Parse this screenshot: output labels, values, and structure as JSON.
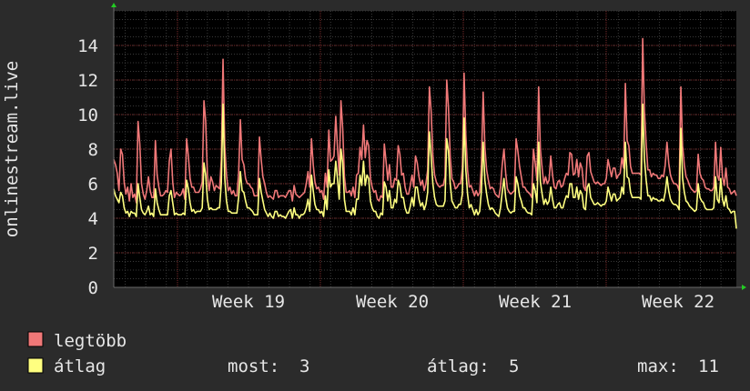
{
  "chart_data": {
    "type": "line",
    "ylabel": "onlinestream.live",
    "ylim": [
      0,
      16
    ],
    "yticks": [
      0,
      2,
      4,
      6,
      8,
      10,
      12,
      14
    ],
    "x_ticks": [
      "Week 19",
      "Week 20",
      "Week 21",
      "Week 22"
    ],
    "grid": true,
    "series": [
      {
        "name": "legtöbb",
        "color": "#f07878",
        "values": [
          7.4,
          7.1,
          6.6,
          5.6,
          8.0,
          7.7,
          6.1,
          5.4,
          5.8,
          5.0,
          6.0,
          5.2,
          5.4,
          4.9,
          9.6,
          8.3,
          6.0,
          5.4,
          5.1,
          5.6,
          6.4,
          5.6,
          5.2,
          5.2,
          8.5,
          6.5,
          5.8,
          5.3,
          5.3,
          5.4,
          5.6,
          5.5,
          7.3,
          8.0,
          6.1,
          5.2,
          5.5,
          5.4,
          5.3,
          5.4,
          5.7,
          5.1,
          8.6,
          7.6,
          6.3,
          5.8,
          5.8,
          5.5,
          5.5,
          5.5,
          5.7,
          6.1,
          10.8,
          9.6,
          6.5,
          5.6,
          6.4,
          6.1,
          5.6,
          5.9,
          5.8,
          5.7,
          7.4,
          13.2,
          8.2,
          6.5,
          5.6,
          5.8,
          5.4,
          5.6,
          5.3,
          5.3,
          6.6,
          9.7,
          7.4,
          7.1,
          6.3,
          6.0,
          6.0,
          5.8,
          5.7,
          5.3,
          5.3,
          5.3,
          8.7,
          7.4,
          6.4,
          6.0,
          5.5,
          5.2,
          5.3,
          5.2,
          5.1,
          5.6,
          5.6,
          5.2,
          5.3,
          5.3,
          5.3,
          5.2,
          5.4,
          5.6,
          5.6,
          5.0,
          5.9,
          5.4,
          5.3,
          5.2,
          5.3,
          5.4,
          5.5,
          6.0,
          6.7,
          5.8,
          8.6,
          7.1,
          6.1,
          5.7,
          5.8,
          5.5,
          5.6,
          5.1,
          6.6,
          5.8,
          9.1,
          7.3,
          7.4,
          7.6,
          9.9,
          8.1,
          6.5,
          10.8,
          9.2,
          6.4,
          5.5,
          5.5,
          5.6,
          5.3,
          5.8,
          5.2,
          6.5,
          6.6,
          8.1,
          7.4,
          9.4,
          7.5,
          8.5,
          8.2,
          6.3,
          5.8,
          5.5,
          5.6,
          5.1,
          5.0,
          5.3,
          5.2,
          8.3,
          7.3,
          6.2,
          7.1,
          5.8,
          5.8,
          6.3,
          6.2,
          8.2,
          7.7,
          6.5,
          6.6,
          5.8,
          5.4,
          5.4,
          5.9,
          6.5,
          5.8,
          7.6,
          7.2,
          6.4,
          5.9,
          6.2,
          5.6,
          6.0,
          6.8,
          11.6,
          10.2,
          7.6,
          6.5,
          6.1,
          5.9,
          5.8,
          5.9,
          5.9,
          6.4,
          12.0,
          10.4,
          7.6,
          6.3,
          6.1,
          5.7,
          5.8,
          6.0,
          6.0,
          6.9,
          12.4,
          8.8,
          6.8,
          5.8,
          5.9,
          5.6,
          5.3,
          5.6,
          5.3,
          5.5,
          7.1,
          11.3,
          8.1,
          6.8,
          6.2,
          5.7,
          5.8,
          5.7,
          5.4,
          5.3,
          5.2,
          5.8,
          7.1,
          8.0,
          6.6,
          5.7,
          5.5,
          5.4,
          5.5,
          5.6,
          8.6,
          7.9,
          7.0,
          6.4,
          5.8,
          5.8,
          5.6,
          5.5,
          5.4,
          5.2,
          8.0,
          7.2,
          6.2,
          11.6,
          8.0,
          6.9,
          6.0,
          6.4,
          6.0,
          6.2,
          7.6,
          6.5,
          5.8,
          5.7,
          6.1,
          6.2,
          5.8,
          5.9,
          6.3,
          6.6,
          6.5,
          7.8,
          7.7,
          6.5,
          6.6,
          7.4,
          6.4,
          7.2,
          6.9,
          5.8,
          5.6,
          7.6,
          7.8,
          6.7,
          6.4,
          6.1,
          6.0,
          6.1,
          6.0,
          5.9,
          6.0,
          6.0,
          6.3,
          7.4,
          6.9,
          6.4,
          6.9,
          6.9,
          6.3,
          6.5,
          6.6,
          7.5,
          6.9,
          11.8,
          8.5,
          8.2,
          7.0,
          6.6,
          6.6,
          6.6,
          6.6,
          6.6,
          6.5,
          14.4,
          10.2,
          8.3,
          6.8,
          6.8,
          6.4,
          6.6,
          6.5,
          6.5,
          6.3,
          6.3,
          6.5,
          6.4,
          7.1,
          8.4,
          7.2,
          6.5,
          6.2,
          6.0,
          6.0,
          5.9,
          5.6,
          11.6,
          8.2,
          7.1,
          6.4,
          6.2,
          5.9,
          5.7,
          5.6,
          5.5,
          5.6,
          7.7,
          6.6,
          6.3,
          6.2,
          5.8,
          5.7,
          5.7,
          5.6,
          5.6,
          5.8,
          8.4,
          6.5,
          6.2,
          8.1,
          6.4,
          5.9,
          6.9,
          5.8,
          5.7,
          5.4,
          5.5,
          5.6,
          5.3
        ]
      },
      {
        "name": "átlag",
        "color": "#ffff80",
        "values": [
          5.7,
          5.3,
          5.1,
          4.9,
          5.5,
          5.3,
          4.6,
          4.3,
          4.4,
          4.1,
          4.4,
          4.3,
          4.3,
          4.1,
          6.0,
          5.2,
          4.5,
          4.3,
          4.2,
          4.4,
          4.7,
          4.2,
          4.3,
          4.1,
          5.7,
          4.9,
          4.5,
          4.2,
          4.2,
          4.2,
          4.2,
          4.2,
          5.3,
          5.6,
          4.9,
          4.2,
          4.3,
          4.2,
          4.2,
          4.2,
          4.3,
          4.2,
          6.2,
          5.7,
          4.9,
          4.4,
          4.5,
          4.3,
          4.4,
          4.4,
          4.4,
          4.6,
          7.2,
          6.5,
          5.1,
          4.5,
          4.6,
          4.5,
          4.5,
          4.5,
          4.6,
          4.6,
          6.0,
          10.6,
          6.3,
          5.0,
          4.4,
          4.4,
          4.3,
          4.3,
          4.3,
          4.3,
          5.2,
          6.7,
          5.6,
          5.5,
          5.0,
          4.6,
          4.6,
          4.5,
          4.4,
          4.2,
          4.2,
          4.2,
          6.3,
          5.5,
          5.0,
          4.5,
          4.3,
          4.1,
          4.3,
          4.1,
          4.0,
          4.4,
          4.4,
          4.1,
          4.2,
          4.1,
          4.1,
          4.0,
          4.2,
          4.4,
          4.5,
          4.0,
          4.6,
          4.2,
          4.2,
          4.0,
          4.2,
          4.2,
          4.3,
          4.6,
          5.1,
          4.4,
          6.5,
          5.6,
          4.8,
          4.5,
          4.5,
          4.3,
          4.4,
          4.1,
          5.3,
          4.5,
          6.8,
          5.8,
          6.0,
          6.0,
          7.3,
          6.3,
          5.1,
          8.0,
          7.2,
          5.1,
          4.4,
          4.4,
          4.4,
          4.2,
          4.6,
          4.2,
          5.1,
          5.1,
          6.5,
          5.9,
          7.3,
          5.9,
          6.5,
          6.3,
          5.0,
          4.6,
          4.4,
          4.4,
          4.1,
          4.0,
          4.3,
          4.2,
          6.1,
          5.8,
          5.0,
          5.6,
          4.6,
          4.6,
          5.1,
          4.9,
          6.2,
          5.9,
          5.2,
          5.2,
          4.6,
          4.3,
          4.3,
          4.7,
          5.2,
          4.7,
          5.8,
          5.8,
          5.1,
          4.7,
          4.9,
          4.5,
          4.8,
          5.5,
          9.0,
          7.6,
          6.0,
          5.2,
          4.8,
          4.7,
          4.7,
          4.7,
          4.7,
          5.0,
          8.6,
          7.9,
          6.0,
          5.0,
          4.8,
          4.6,
          4.6,
          4.8,
          4.8,
          5.4,
          9.8,
          6.8,
          5.4,
          4.6,
          4.8,
          4.5,
          4.2,
          4.5,
          4.2,
          4.4,
          5.6,
          8.4,
          6.2,
          5.4,
          4.8,
          4.5,
          4.6,
          4.5,
          4.3,
          4.2,
          4.1,
          4.6,
          5.5,
          6.3,
          5.2,
          4.6,
          4.4,
          4.3,
          4.4,
          4.4,
          6.4,
          6.0,
          5.3,
          5.0,
          4.6,
          4.6,
          4.4,
          4.3,
          4.3,
          4.2,
          6.0,
          5.6,
          4.9,
          8.4,
          6.1,
          5.4,
          4.8,
          5.1,
          4.8,
          5.0,
          5.8,
          5.1,
          4.6,
          4.6,
          4.8,
          4.9,
          4.6,
          4.6,
          5.0,
          5.3,
          5.2,
          6.0,
          6.0,
          5.2,
          5.2,
          5.8,
          5.1,
          5.6,
          5.4,
          4.6,
          4.5,
          5.8,
          6.0,
          5.2,
          5.0,
          4.8,
          4.8,
          4.9,
          4.8,
          4.7,
          4.8,
          4.8,
          5.0,
          5.8,
          5.4,
          5.0,
          5.4,
          5.4,
          5.0,
          5.1,
          5.2,
          5.8,
          5.4,
          8.4,
          6.4,
          6.3,
          5.5,
          5.2,
          5.2,
          5.2,
          5.2,
          5.2,
          5.1,
          10.6,
          7.4,
          6.2,
          5.3,
          5.3,
          5.0,
          5.2,
          5.1,
          5.1,
          5.0,
          5.0,
          5.1,
          5.0,
          5.5,
          6.4,
          5.6,
          5.1,
          4.9,
          4.8,
          4.8,
          4.7,
          4.5,
          9.2,
          6.3,
          5.5,
          5.0,
          4.9,
          4.7,
          4.6,
          4.5,
          4.4,
          4.5,
          6.0,
          5.2,
          5.0,
          4.9,
          4.6,
          4.5,
          4.5,
          4.5,
          4.5,
          4.6,
          6.4,
          5.1,
          4.9,
          6.3,
          5.1,
          4.7,
          5.3,
          4.6,
          4.5,
          4.3,
          4.4,
          4.4,
          3.4
        ]
      }
    ]
  },
  "legend": {
    "max_label": "legtöbb",
    "avg_label": "átlag",
    "stats": [
      {
        "label": "most:",
        "value": "3"
      },
      {
        "label": "átlag:",
        "value": "5"
      },
      {
        "label": "max:",
        "value": "11"
      }
    ]
  },
  "colors": {
    "background": "#2b2b2b",
    "plot_background": "#000000",
    "grid_major": "#7a2a2a",
    "grid_minor": "#3a3a3a",
    "axis": "#6a6a6a",
    "arrow": "#22cc22"
  }
}
